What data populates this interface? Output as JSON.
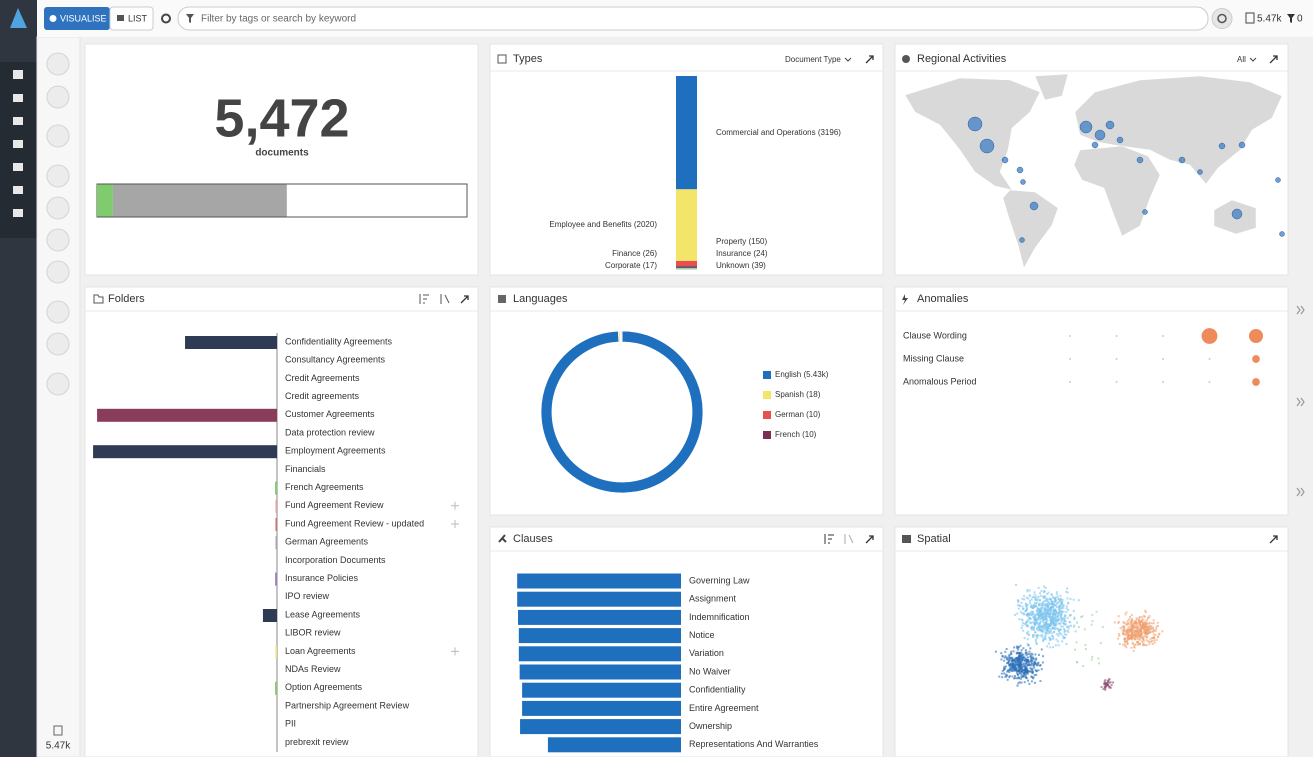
{
  "toolbar": {
    "visualise": "VISUALISE",
    "list": "LIST",
    "search_placeholder": "Filter by tags or search by keyword",
    "doc_count": "5.47k",
    "filter_count": "0"
  },
  "sidebar": {
    "doc_count": "5.47k"
  },
  "summary": {
    "value": "5,472",
    "label": "documents",
    "progress": {
      "values": [
        4.3,
        47.0
      ],
      "colors": [
        "#7fcb6e",
        "#a6a6a6"
      ]
    }
  },
  "types": {
    "title": "Types",
    "dropdown": "Document Type",
    "segments": [
      {
        "label": "Commercial and Operations (3196)",
        "value": 3196,
        "color": "#1f6fbf"
      },
      {
        "label": "Employee and Benefits (2020)",
        "value": 2020,
        "color": "#f3e46a"
      },
      {
        "label": "Property (150)",
        "value": 150,
        "color": "#e85050"
      },
      {
        "label": "Finance (26)",
        "value": 26,
        "color": "#7a3050"
      },
      {
        "label": "Insurance (24)",
        "value": 24,
        "color": "#3a4a6a"
      },
      {
        "label": "Corporate (17)",
        "value": 17,
        "color": "#6cc070"
      },
      {
        "label": "Unknown (39)",
        "value": 39,
        "color": "#d8d8d8"
      }
    ]
  },
  "regional": {
    "title": "Regional Activities",
    "dropdown": "All"
  },
  "folders": {
    "title": "Folders",
    "max": 1000,
    "items": [
      {
        "name": "Confidentiality Agreements",
        "value": 484,
        "color": "#2f3b55"
      },
      {
        "name": "Consultancy Agreements",
        "value": 0,
        "color": "#2f3b55"
      },
      {
        "name": "Credit Agreements",
        "value": 0,
        "color": "#2f3b55"
      },
      {
        "name": "Credit agreements",
        "value": 0,
        "color": "#2f3b55"
      },
      {
        "name": "Customer Agreements",
        "value": 947,
        "color": "#8a3d5a"
      },
      {
        "name": "Data protection review",
        "value": 0,
        "color": "#2f3b55"
      },
      {
        "name": "Employment Agreements",
        "value": 968,
        "color": "#2f3b55"
      },
      {
        "name": "Financials",
        "value": 0,
        "color": "#2f3b55"
      },
      {
        "name": "French Agreements",
        "value": 10,
        "color": "#7fcb6e"
      },
      {
        "name": "Fund Agreement Review",
        "value": 8,
        "color": "#e8a0a0",
        "expandable": true
      },
      {
        "name": "Fund Agreement Review - updated",
        "value": 8,
        "color": "#d07070",
        "expandable": true
      },
      {
        "name": "German Agreements",
        "value": 8,
        "color": "#b0a0c0"
      },
      {
        "name": "Incorporation Documents",
        "value": 0,
        "color": "#2f3b55"
      },
      {
        "name": "Insurance Policies",
        "value": 10,
        "color": "#a080c0"
      },
      {
        "name": "IPO review",
        "value": 0,
        "color": "#2f3b55"
      },
      {
        "name": "Lease Agreements",
        "value": 74,
        "color": "#2f3b55"
      },
      {
        "name": "LIBOR review",
        "value": 0,
        "color": "#2f3b55"
      },
      {
        "name": "Loan Agreements",
        "value": 8,
        "color": "#f0e080",
        "expandable": true
      },
      {
        "name": "NDAs Review",
        "value": 0,
        "color": "#2f3b55"
      },
      {
        "name": "Option Agreements",
        "value": 10,
        "color": "#7fcb6e"
      },
      {
        "name": "Partnership Agreement Review",
        "value": 0,
        "color": "#2f3b55"
      },
      {
        "name": "PII",
        "value": 0,
        "color": "#2f3b55"
      },
      {
        "name": "prebrexit review",
        "value": 0,
        "color": "#2f3b55"
      }
    ]
  },
  "languages": {
    "title": "Languages",
    "items": [
      {
        "label": "English (5.43k)",
        "value": 5430,
        "color": "#1f6fbf"
      },
      {
        "label": "Spanish (18)",
        "value": 18,
        "color": "#f3e46a"
      },
      {
        "label": "German (10)",
        "value": 10,
        "color": "#e85050"
      },
      {
        "label": "French (10)",
        "value": 10,
        "color": "#7a3050"
      }
    ]
  },
  "anomalies": {
    "title": "Anomalies",
    "color": "#ef8a5a",
    "rows": [
      {
        "name": "Clause Wording",
        "values": [
          0,
          0,
          0,
          12,
          9
        ]
      },
      {
        "name": "Missing Clause",
        "values": [
          0,
          0,
          0,
          0,
          2
        ]
      },
      {
        "name": "Anomalous Period",
        "values": [
          0,
          0,
          0,
          0,
          2
        ]
      }
    ]
  },
  "clauses": {
    "title": "Clauses",
    "max": 4200,
    "color": "#1f6fbf",
    "items": [
      {
        "name": "Governing Law",
        "value": 4000
      },
      {
        "name": "Assignment",
        "value": 4000
      },
      {
        "name": "Indemnification",
        "value": 3980
      },
      {
        "name": "Notice",
        "value": 3960
      },
      {
        "name": "Variation",
        "value": 3960
      },
      {
        "name": "No Waiver",
        "value": 3940
      },
      {
        "name": "Confidentiality",
        "value": 3880
      },
      {
        "name": "Entire Agreement",
        "value": 3880
      },
      {
        "name": "Ownership",
        "value": 3930
      },
      {
        "name": "Representations And Warranties",
        "value": 3250
      }
    ]
  },
  "spatial": {
    "title": "Spatial"
  }
}
